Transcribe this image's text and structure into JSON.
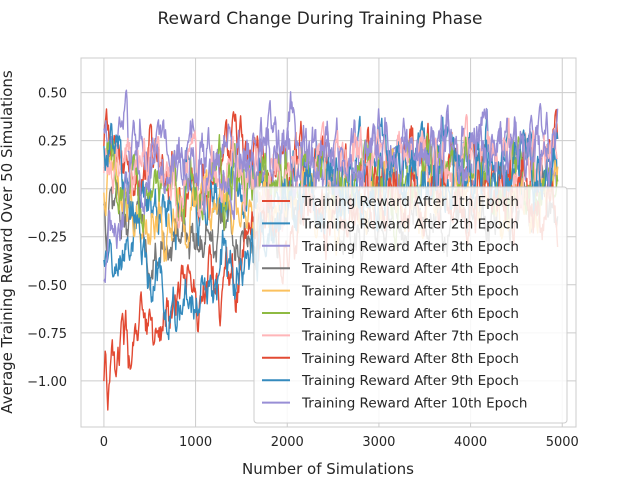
{
  "chart_data": {
    "type": "line",
    "title": "Reward Change During Training Phase",
    "xlabel": "Number of Simulations",
    "ylabel": "Average Training Reward Over 50 Simulations",
    "xlim": [
      -250,
      5150
    ],
    "ylim": [
      -1.24,
      0.68
    ],
    "xticks": [
      0,
      1000,
      2000,
      3000,
      4000,
      5000
    ],
    "xtick_labels": [
      "0",
      "1000",
      "2000",
      "3000",
      "4000",
      "5000"
    ],
    "yticks": [
      -1.0,
      -0.75,
      -0.5,
      -0.25,
      0.0,
      0.25,
      0.5
    ],
    "ytick_labels": [
      "−1.00",
      "−0.75",
      "−0.50",
      "−0.25",
      "0.00",
      "0.25",
      "0.50"
    ],
    "grid": true,
    "legend_position": "lower-right",
    "series": [
      {
        "name": "Training Reward After 1th Epoch",
        "color": "#e24a33",
        "points": [
          [
            0,
            0.2
          ],
          [
            500,
            0.1
          ],
          [
            1000,
            0.05
          ],
          [
            1500,
            0.15
          ],
          [
            2000,
            0.1
          ],
          [
            2500,
            0.1
          ],
          [
            3000,
            0.05
          ],
          [
            3500,
            0.1
          ],
          [
            4000,
            0.1
          ],
          [
            4500,
            0.05
          ],
          [
            4950,
            0.1
          ]
        ]
      },
      {
        "name": "Training Reward After 2th Epoch",
        "color": "#348abd",
        "points": [
          [
            0,
            -0.5
          ],
          [
            300,
            -0.3
          ],
          [
            600,
            -0.1
          ],
          [
            1000,
            -0.05
          ],
          [
            1500,
            0.05
          ],
          [
            2000,
            0.1
          ],
          [
            2500,
            0.15
          ],
          [
            3000,
            0.1
          ],
          [
            3500,
            0.1
          ],
          [
            4000,
            0.15
          ],
          [
            4500,
            0.2
          ],
          [
            4950,
            0.15
          ]
        ]
      },
      {
        "name": "Training Reward After 3th Epoch",
        "color": "#988ed5",
        "points": [
          [
            0,
            0.2
          ],
          [
            300,
            0.25
          ],
          [
            600,
            0.2
          ],
          [
            1000,
            0.2
          ],
          [
            1500,
            0.2
          ],
          [
            2000,
            0.2
          ],
          [
            2500,
            0.2
          ],
          [
            3000,
            0.2
          ],
          [
            3500,
            0.2
          ],
          [
            4000,
            0.2
          ],
          [
            4500,
            0.2
          ],
          [
            4950,
            0.25
          ]
        ]
      },
      {
        "name": "Training Reward After 4th Epoch",
        "color": "#777777",
        "points": [
          [
            0,
            -0.1
          ],
          [
            300,
            -0.2
          ],
          [
            600,
            -0.3
          ],
          [
            1000,
            -0.25
          ],
          [
            1500,
            -0.2
          ],
          [
            2000,
            -0.15
          ],
          [
            2500,
            -0.15
          ],
          [
            3000,
            -0.15
          ],
          [
            3500,
            -0.1
          ],
          [
            4000,
            -0.1
          ],
          [
            4500,
            -0.1
          ],
          [
            4950,
            -0.1
          ]
        ]
      },
      {
        "name": "Training Reward After 5th Epoch",
        "color": "#fbc15e",
        "points": [
          [
            0,
            0.0
          ],
          [
            300,
            -0.1
          ],
          [
            600,
            -0.15
          ],
          [
            1000,
            -0.1
          ],
          [
            1500,
            -0.1
          ],
          [
            2000,
            -0.05
          ],
          [
            2500,
            -0.05
          ],
          [
            3000,
            -0.05
          ],
          [
            3500,
            -0.05
          ],
          [
            4000,
            -0.05
          ],
          [
            4500,
            -0.05
          ],
          [
            4950,
            -0.05
          ]
        ]
      },
      {
        "name": "Training Reward After 6th Epoch",
        "color": "#8eba42",
        "points": [
          [
            0,
            0.05
          ],
          [
            300,
            0.0
          ],
          [
            600,
            0.0
          ],
          [
            1000,
            0.05
          ],
          [
            1500,
            0.05
          ],
          [
            2000,
            0.05
          ],
          [
            2500,
            0.05
          ],
          [
            3000,
            0.05
          ],
          [
            3500,
            0.05
          ],
          [
            4000,
            0.05
          ],
          [
            4500,
            0.05
          ],
          [
            4950,
            0.05
          ]
        ]
      },
      {
        "name": "Training Reward After 7th Epoch",
        "color": "#ffb5b8",
        "points": [
          [
            0,
            0.1
          ],
          [
            300,
            0.1
          ],
          [
            600,
            0.05
          ],
          [
            1000,
            0.1
          ],
          [
            1500,
            0.1
          ],
          [
            2000,
            0.1
          ],
          [
            2500,
            0.1
          ],
          [
            3000,
            0.15
          ],
          [
            3500,
            0.1
          ],
          [
            4000,
            0.1
          ],
          [
            4500,
            0.1
          ],
          [
            4950,
            0.15
          ]
        ]
      },
      {
        "name": "Training Reward After 8th Epoch",
        "color": "#e24a33",
        "points": [
          [
            0,
            -0.98
          ],
          [
            200,
            -0.9
          ],
          [
            400,
            -0.85
          ],
          [
            600,
            -0.7
          ],
          [
            800,
            -0.6
          ],
          [
            1000,
            -0.5
          ],
          [
            1200,
            -0.5
          ],
          [
            1400,
            -0.45
          ],
          [
            1600,
            -0.3
          ],
          [
            2000,
            -0.15
          ],
          [
            2500,
            -0.1
          ],
          [
            3000,
            -0.05
          ],
          [
            3500,
            -0.05
          ],
          [
            4000,
            -0.05
          ],
          [
            4500,
            -0.05
          ],
          [
            4950,
            -0.05
          ]
        ]
      },
      {
        "name": "Training Reward After 9th Epoch",
        "color": "#348abd",
        "points": [
          [
            0,
            0.3
          ],
          [
            300,
            -0.1
          ],
          [
            500,
            -0.5
          ],
          [
            700,
            -0.6
          ],
          [
            1000,
            -0.55
          ],
          [
            1300,
            -0.45
          ],
          [
            1600,
            -0.35
          ],
          [
            2000,
            -0.1
          ],
          [
            2500,
            0.0
          ],
          [
            3000,
            0.05
          ],
          [
            3500,
            0.0
          ],
          [
            4000,
            0.05
          ],
          [
            4500,
            0.1
          ],
          [
            4950,
            0.1
          ]
        ]
      },
      {
        "name": "Training Reward After 10th Epoch",
        "color": "#988ed5",
        "points": [
          [
            0,
            -0.4
          ],
          [
            200,
            -0.2
          ],
          [
            300,
            0.1
          ],
          [
            500,
            0.15
          ],
          [
            800,
            0.1
          ],
          [
            1000,
            0.1
          ],
          [
            1500,
            0.1
          ],
          [
            2000,
            0.15
          ],
          [
            2500,
            0.15
          ],
          [
            3000,
            0.15
          ],
          [
            3500,
            0.2
          ],
          [
            4000,
            0.2
          ],
          [
            4500,
            0.2
          ],
          [
            4950,
            0.2
          ]
        ]
      }
    ]
  }
}
